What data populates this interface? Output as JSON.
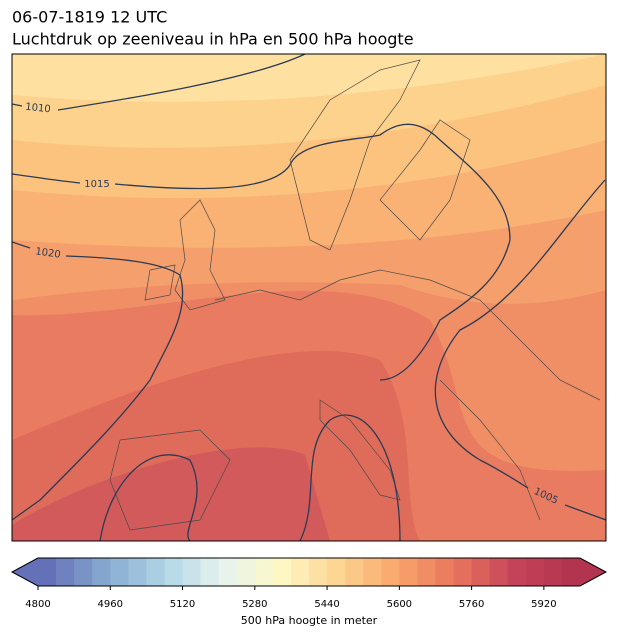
{
  "header": {
    "date": "06-07-1819 12 UTC",
    "title": "Luchtdruk op zeeniveau in hPa en 500 hPa hoogte"
  },
  "isobar_labels": [
    1010,
    1015,
    1020,
    1005
  ],
  "colorbar": {
    "range": [
      4800,
      6000
    ],
    "ticks": [
      4800,
      4960,
      5120,
      5280,
      5440,
      5600,
      5760,
      5920
    ],
    "label": "500 hPa hoogte in meter"
  }
}
